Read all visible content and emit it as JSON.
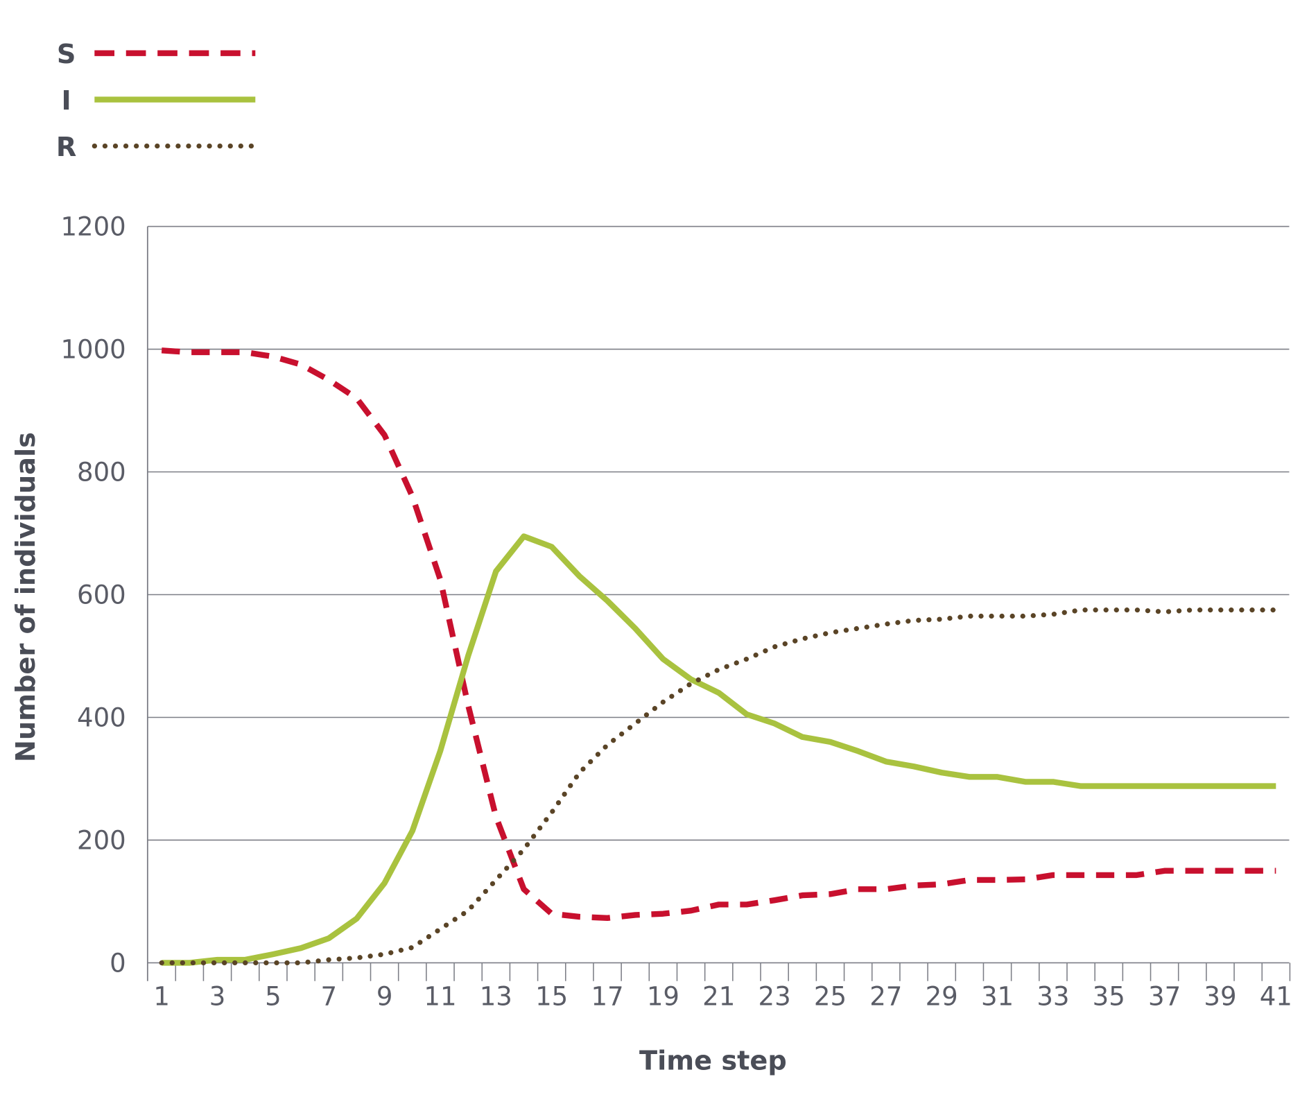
{
  "chart_data": {
    "type": "line",
    "title": "",
    "xlabel": "Time step",
    "ylabel": "Number of individuals",
    "xlim": [
      1,
      41
    ],
    "ylim": [
      0,
      1200
    ],
    "yticks": [
      0,
      200,
      400,
      600,
      800,
      1000,
      1200
    ],
    "xticks": [
      1,
      3,
      5,
      7,
      9,
      11,
      13,
      15,
      17,
      19,
      21,
      23,
      25,
      27,
      29,
      31,
      33,
      35,
      37,
      39,
      41
    ],
    "grid": "horizontal",
    "legend_position": "top-left",
    "x": [
      1,
      2,
      3,
      4,
      5,
      6,
      7,
      8,
      9,
      10,
      11,
      12,
      13,
      14,
      15,
      16,
      17,
      18,
      19,
      20,
      21,
      22,
      23,
      24,
      25,
      26,
      27,
      28,
      29,
      30,
      31,
      32,
      33,
      34,
      35,
      36,
      37,
      38,
      39,
      40,
      41
    ],
    "series": [
      {
        "name": "S",
        "style": "dashed",
        "color": "#c8102e",
        "values": [
          998,
          995,
          995,
          995,
          988,
          975,
          950,
          920,
          860,
          760,
          625,
          420,
          238,
          120,
          80,
          75,
          73,
          78,
          80,
          85,
          95,
          95,
          102,
          110,
          112,
          120,
          120,
          126,
          128,
          135,
          135,
          136,
          143,
          143,
          143,
          143,
          150,
          150,
          150,
          150,
          150
        ]
      },
      {
        "name": "I",
        "style": "solid",
        "color": "#a9c23f",
        "values": [
          0,
          0,
          5,
          5,
          14,
          24,
          40,
          72,
          130,
          215,
          345,
          500,
          638,
          695,
          678,
          630,
          590,
          545,
          495,
          462,
          440,
          405,
          390,
          368,
          360,
          345,
          328,
          320,
          310,
          303,
          303,
          295,
          295,
          288,
          288,
          288,
          288,
          288,
          288,
          288,
          288
        ]
      },
      {
        "name": "R",
        "style": "dotted",
        "color": "#5a4426",
        "values": [
          0,
          0,
          0,
          0,
          0,
          0,
          5,
          8,
          14,
          25,
          55,
          85,
          135,
          185,
          245,
          310,
          355,
          390,
          425,
          455,
          478,
          495,
          515,
          528,
          538,
          545,
          552,
          558,
          560,
          565,
          565,
          565,
          568,
          575,
          575,
          575,
          572,
          575,
          575,
          575,
          575
        ]
      }
    ]
  }
}
